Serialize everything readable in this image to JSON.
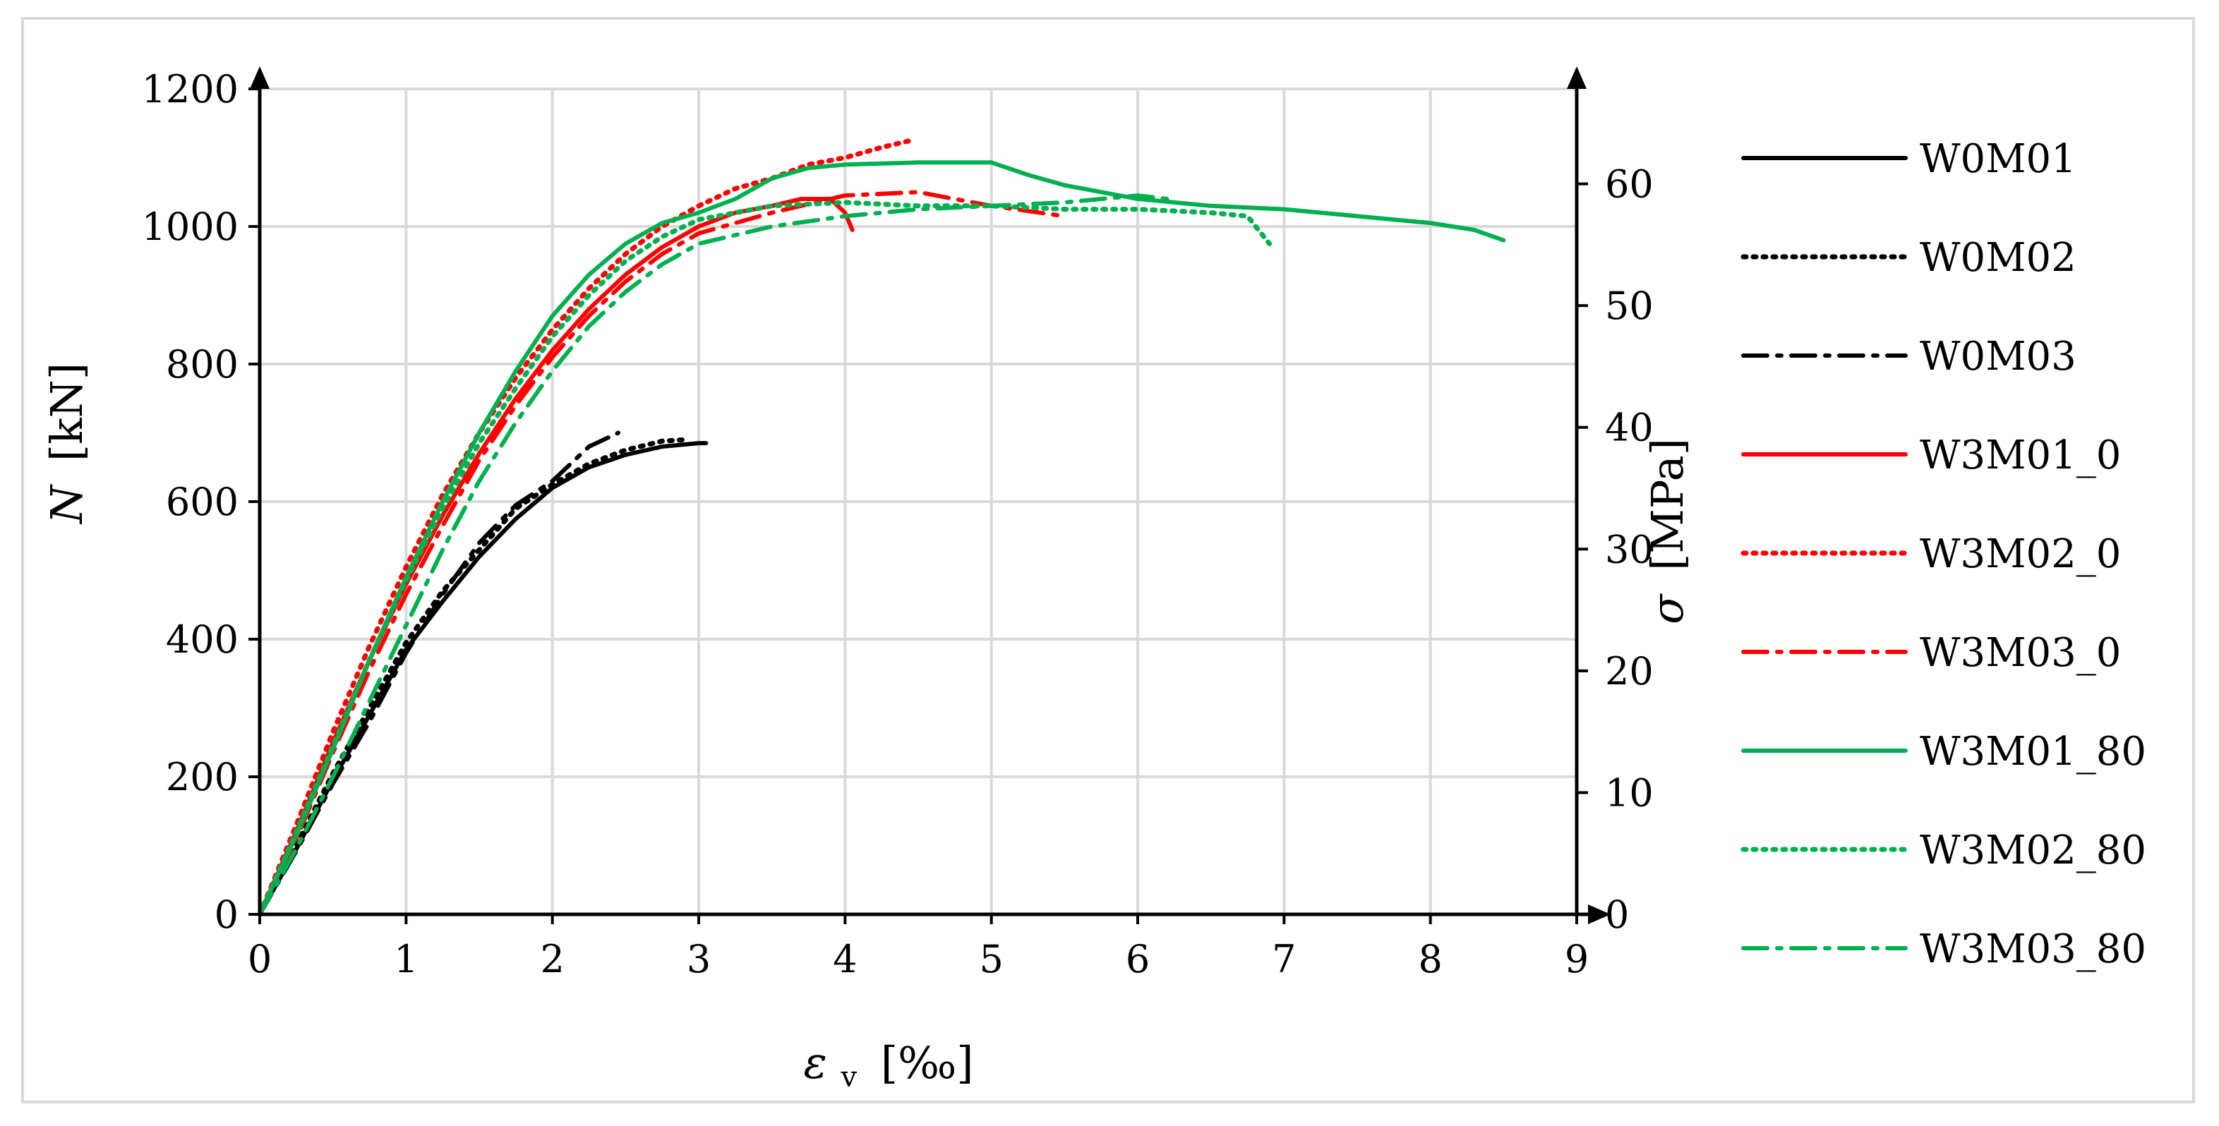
{
  "chart_data": {
    "type": "line",
    "xlabel": "ε_v [‰]",
    "xlabel_main": "ε",
    "xlabel_sub": "v",
    "xlabel_unit": "[‰]",
    "ylabel": "N [kN]",
    "ylabel_main": "N",
    "ylabel_unit": "[kN]",
    "y2label": "σ [MPa]",
    "y2label_main": "σ",
    "y2label_unit": "[MPa]",
    "xlim": [
      0,
      9
    ],
    "ylim": [
      0,
      1200
    ],
    "y2lim": [
      0,
      67.8
    ],
    "xticks": [
      "0",
      "1",
      "2",
      "3",
      "4",
      "5",
      "6",
      "7",
      "8",
      "9"
    ],
    "yticks": [
      "0",
      "200",
      "400",
      "600",
      "800",
      "1000",
      "1200"
    ],
    "y2ticks": [
      "0",
      "10",
      "20",
      "30",
      "40",
      "50",
      "60"
    ],
    "grid": true,
    "legend_position": "right",
    "series": [
      {
        "name": "W0M01",
        "color": "#000000",
        "dash": "solid",
        "x": [
          0,
          0.25,
          0.5,
          0.75,
          1.0,
          1.25,
          1.5,
          1.75,
          2.0,
          2.25,
          2.5,
          2.75,
          3.0,
          3.05
        ],
        "y": [
          0,
          95,
          195,
          290,
          385,
          455,
          520,
          575,
          620,
          650,
          668,
          680,
          685,
          685
        ]
      },
      {
        "name": "W0M02",
        "color": "#000000",
        "dash": "dot",
        "x": [
          0,
          0.25,
          0.5,
          0.75,
          1.0,
          1.25,
          1.5,
          1.75,
          2.0,
          2.25,
          2.5,
          2.75,
          2.9
        ],
        "y": [
          0,
          100,
          205,
          300,
          395,
          470,
          530,
          590,
          625,
          655,
          675,
          688,
          690
        ]
      },
      {
        "name": "W0M03",
        "color": "#000000",
        "dash": "dashdot",
        "x": [
          0,
          0.25,
          0.5,
          0.75,
          1.0,
          1.25,
          1.5,
          1.75,
          2.0,
          2.25,
          2.45
        ],
        "y": [
          0,
          92,
          190,
          280,
          380,
          465,
          540,
          595,
          630,
          680,
          700
        ]
      },
      {
        "name": "W3M01_0",
        "color": "#ff0000",
        "dash": "solid",
        "x": [
          0,
          0.25,
          0.5,
          0.75,
          1.0,
          1.25,
          1.5,
          1.75,
          2.0,
          2.25,
          2.5,
          2.75,
          3.0,
          3.25,
          3.5,
          3.7,
          3.9,
          4.0,
          4.05
        ],
        "y": [
          0,
          120,
          250,
          370,
          480,
          580,
          670,
          750,
          820,
          880,
          930,
          970,
          1000,
          1020,
          1030,
          1040,
          1040,
          1020,
          995
        ]
      },
      {
        "name": "W3M02_0",
        "color": "#ff0000",
        "dash": "dot",
        "x": [
          0,
          0.25,
          0.5,
          0.75,
          1.0,
          1.25,
          1.5,
          1.75,
          2.0,
          2.25,
          2.5,
          2.75,
          3.0,
          3.25,
          3.5,
          3.75,
          4.0,
          4.25,
          4.45
        ],
        "y": [
          0,
          130,
          265,
          390,
          505,
          610,
          700,
          780,
          850,
          910,
          960,
          1000,
          1030,
          1055,
          1070,
          1090,
          1100,
          1115,
          1125
        ]
      },
      {
        "name": "W3M03_0",
        "color": "#ff0000",
        "dash": "dashdot",
        "x": [
          0,
          0.25,
          0.5,
          0.75,
          1.0,
          1.25,
          1.5,
          1.75,
          2.0,
          2.25,
          2.5,
          2.75,
          3.0,
          3.5,
          4.0,
          4.5,
          5.0,
          5.5
        ],
        "y": [
          0,
          110,
          235,
          355,
          465,
          565,
          660,
          740,
          810,
          870,
          920,
          960,
          990,
          1020,
          1045,
          1050,
          1030,
          1015
        ]
      },
      {
        "name": "W3M01_80",
        "color": "#00b050",
        "dash": "solid",
        "x": [
          0,
          0.25,
          0.5,
          0.75,
          1.0,
          1.25,
          1.5,
          1.75,
          2.0,
          2.25,
          2.5,
          2.75,
          3.0,
          3.25,
          3.5,
          3.75,
          4.0,
          4.5,
          5.0,
          5.25,
          5.5,
          6.0,
          6.5,
          7.0,
          7.5,
          8.0,
          8.3,
          8.5
        ],
        "y": [
          0,
          115,
          240,
          370,
          490,
          600,
          700,
          790,
          870,
          930,
          975,
          1005,
          1020,
          1040,
          1070,
          1085,
          1090,
          1093,
          1093,
          1075,
          1060,
          1040,
          1030,
          1025,
          1015,
          1005,
          995,
          980
        ]
      },
      {
        "name": "W3M02_80",
        "color": "#00b050",
        "dash": "dot",
        "x": [
          0,
          0.25,
          0.5,
          0.75,
          1.0,
          1.25,
          1.5,
          1.75,
          2.0,
          2.25,
          2.5,
          2.75,
          3.0,
          3.5,
          4.0,
          4.5,
          5.0,
          5.5,
          6.0,
          6.5,
          6.75,
          6.9
        ],
        "y": [
          0,
          120,
          245,
          370,
          485,
          590,
          685,
          765,
          840,
          900,
          950,
          985,
          1010,
          1030,
          1035,
          1030,
          1030,
          1025,
          1025,
          1020,
          1015,
          975
        ]
      },
      {
        "name": "W3M03_80",
        "color": "#00b050",
        "dash": "dashdot",
        "x": [
          0,
          0.25,
          0.5,
          0.75,
          1.0,
          1.25,
          1.5,
          1.75,
          2.0,
          2.25,
          2.5,
          2.75,
          3.0,
          3.5,
          4.0,
          4.5,
          5.0,
          5.5,
          6.0,
          6.2
        ],
        "y": [
          0,
          95,
          200,
          310,
          420,
          530,
          630,
          715,
          790,
          855,
          905,
          945,
          975,
          1000,
          1015,
          1025,
          1030,
          1035,
          1045,
          1040
        ]
      }
    ]
  }
}
